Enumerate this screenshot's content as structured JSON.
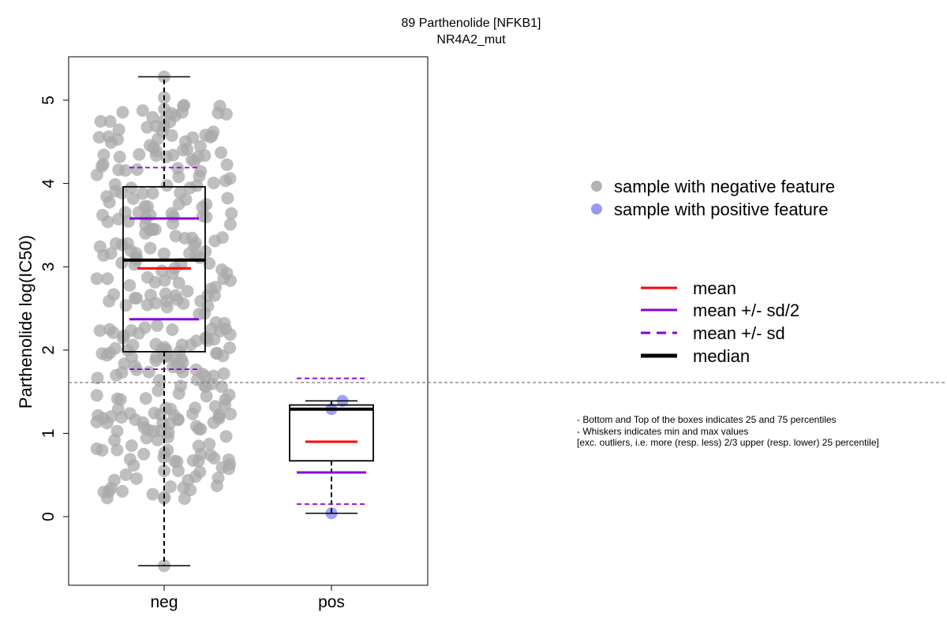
{
  "chart_data": {
    "type": "box",
    "title": "89 Parthenolide [NFKB1]",
    "subtitle": "NR4A2_mut",
    "ylabel": "Parthenolide log(IC50)",
    "xlabel": "",
    "categories": [
      "neg",
      "pos"
    ],
    "ylim": [
      -0.8,
      5.4
    ],
    "yticks": [
      0,
      1,
      2,
      3,
      4,
      5
    ],
    "threshold_line": 1.61,
    "groups": [
      {
        "name": "neg",
        "whisker_low": -0.59,
        "q1": 1.98,
        "median": 3.08,
        "q3": 3.96,
        "whisker_high": 5.28,
        "mean": 2.98,
        "mean_minus_half_sd": 2.37,
        "mean_plus_half_sd": 3.58,
        "mean_minus_sd": 1.77,
        "mean_plus_sd": 4.19,
        "point_color": "#aaaaaa"
      },
      {
        "name": "pos",
        "whisker_low": 0.04,
        "q1": 0.67,
        "median": 1.29,
        "q3": 1.34,
        "whisker_high": 1.39,
        "mean": 0.9,
        "mean_minus_half_sd": 0.53,
        "mean_plus_half_sd": 1.29,
        "mean_minus_sd": 0.15,
        "mean_plus_sd": 1.66,
        "points": [
          0.04,
          1.29,
          1.39
        ],
        "point_color": "#8f8ff5"
      }
    ],
    "legend_points": [
      {
        "label": "sample with negative feature",
        "color": "#b3b3b3"
      },
      {
        "label": "sample with positive feature",
        "color": "#9999f5"
      }
    ],
    "legend_lines": [
      {
        "label": "mean",
        "color": "#ff0000",
        "style": "solid"
      },
      {
        "label": "mean +/- sd/2",
        "color": "#8800dd",
        "style": "solid"
      },
      {
        "label": "mean +/- sd",
        "color": "#8800dd",
        "style": "dashed"
      },
      {
        "label": "median",
        "color": "#000000",
        "style": "bold"
      }
    ],
    "notes": [
      "- Bottom and Top of the boxes indicates 25 and 75 percentiles",
      "- Whiskers indicates min and max values",
      "[exc. outliers, i.e. more (resp. less) 2/3 upper (resp. lower) 25 percentile]"
    ]
  }
}
